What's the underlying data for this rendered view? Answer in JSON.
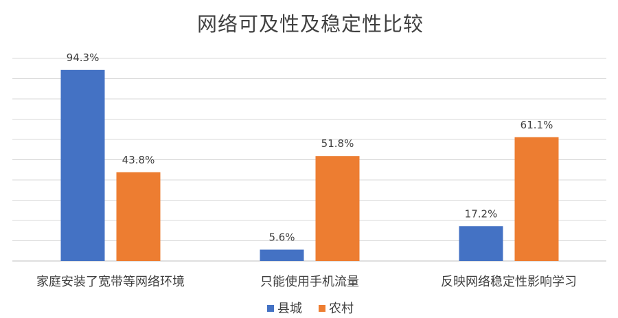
{
  "chart_data": {
    "type": "bar",
    "title": "网络可及性及稳定性比较",
    "xlabel": "",
    "ylabel": "",
    "ylim": [
      0,
      100
    ],
    "grid": true,
    "legend_position": "bottom",
    "categories": [
      "家庭安装了宽带等网络环境",
      "只能使用手机流量",
      "反映网络稳定性影响学习"
    ],
    "series": [
      {
        "name": "县城",
        "color": "#4472C4",
        "values": [
          94.3,
          5.6,
          17.2
        ],
        "labels": [
          "94.3%",
          "5.6%",
          "17.2%"
        ]
      },
      {
        "name": "农村",
        "color": "#ED7D31",
        "values": [
          43.8,
          51.8,
          61.1
        ],
        "labels": [
          "43.8%",
          "51.8%",
          "61.1%"
        ]
      }
    ]
  }
}
